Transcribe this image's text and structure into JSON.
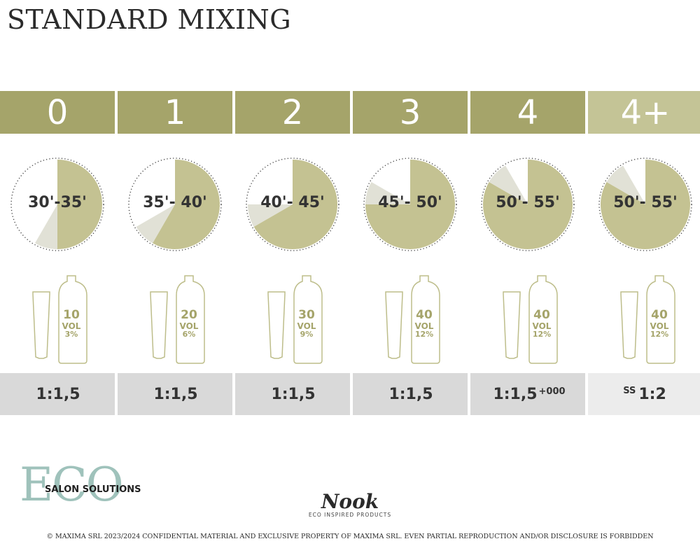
{
  "title": "STANDARD MIXING",
  "colors": {
    "olive": "#a5a46a",
    "olive_light": "#c4c496",
    "clock_fill": "#c4c292",
    "clock_sliver": "#e1e1d6",
    "ratio_bg": "#d9d9d9"
  },
  "columns": [
    {
      "level": "0",
      "time": "30'-35'",
      "minutes_start": 30,
      "minutes_end": 35,
      "vol_number": "10",
      "vol_word": "VOL",
      "vol_percent": "3%",
      "ratio_prefix": "",
      "ratio": "1:1,5",
      "ratio_suffix": ""
    },
    {
      "level": "1",
      "time": "35'- 40'",
      "minutes_start": 35,
      "minutes_end": 40,
      "vol_number": "20",
      "vol_word": "VOL",
      "vol_percent": "6%",
      "ratio_prefix": "",
      "ratio": "1:1,5",
      "ratio_suffix": ""
    },
    {
      "level": "2",
      "time": "40'- 45'",
      "minutes_start": 40,
      "minutes_end": 45,
      "vol_number": "30",
      "vol_word": "VOL",
      "vol_percent": "9%",
      "ratio_prefix": "",
      "ratio": "1:1,5",
      "ratio_suffix": ""
    },
    {
      "level": "3",
      "time": "45'- 50'",
      "minutes_start": 45,
      "minutes_end": 50,
      "vol_number": "40",
      "vol_word": "VOL",
      "vol_percent": "12%",
      "ratio_prefix": "",
      "ratio": "1:1,5",
      "ratio_suffix": ""
    },
    {
      "level": "4",
      "time": "50'- 55'",
      "minutes_start": 50,
      "minutes_end": 55,
      "vol_number": "40",
      "vol_word": "VOL",
      "vol_percent": "12%",
      "ratio_prefix": "",
      "ratio": "1:1,5",
      "ratio_suffix": "+000"
    },
    {
      "level": "4+",
      "time": "50'- 55'",
      "minutes_start": 50,
      "minutes_end": 55,
      "vol_number": "40",
      "vol_word": "VOL",
      "vol_percent": "12%",
      "ratio_prefix": "SS",
      "ratio": "1:2",
      "ratio_suffix": ""
    }
  ],
  "eco_logo": {
    "letters": "ECO",
    "subtitle": "SALON SOLUTIONS"
  },
  "nook_logo": {
    "word": "Nook",
    "tagline": "ECO INSPIRED PRODUCTS"
  },
  "footer": "© MAXIMA SRL  2023/2024  CONFIDENTIAL MATERIAL AND EXCLUSIVE PROPERTY OF MAXIMA SRL. EVEN PARTIAL REPRODUCTION AND/OR DISCLOSURE IS FORBIDDEN"
}
